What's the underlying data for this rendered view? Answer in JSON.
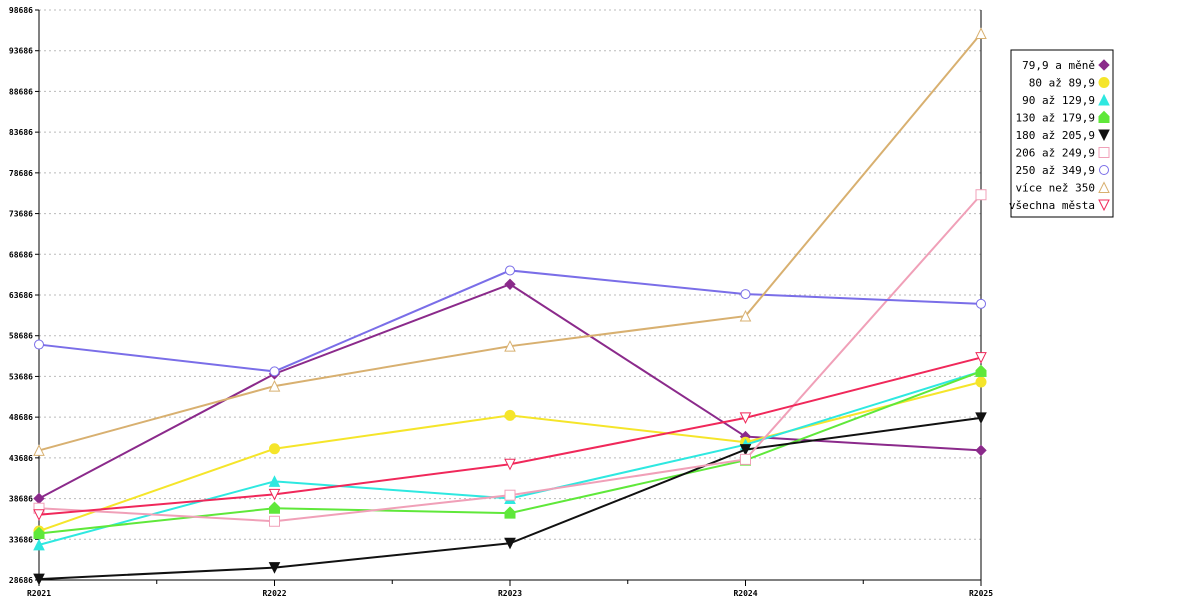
{
  "chart_data": {
    "type": "line",
    "categories": [
      "R2021",
      "R2022",
      "R2023",
      "R2024",
      "R2025"
    ],
    "ylim": [
      28686,
      98686
    ],
    "yticks": [
      28686,
      33686,
      38686,
      43686,
      48686,
      53686,
      58686,
      63686,
      68686,
      73686,
      78686,
      83686,
      88686,
      93686,
      98686
    ],
    "grid": true,
    "legend_position": "right",
    "series": [
      {
        "name": "79,9 a měně",
        "color": "#8b2a8b",
        "marker": "diamond",
        "values": [
          38700,
          54000,
          65000,
          46300,
          44600
        ]
      },
      {
        "name": "80 až 89,9",
        "color": "#f5e52a",
        "marker": "circle-filled",
        "values": [
          34700,
          44800,
          48900,
          45600,
          53000
        ]
      },
      {
        "name": "90 až 129,9",
        "color": "#2ee8e0",
        "marker": "triangle-up",
        "values": [
          33000,
          40800,
          38700,
          45300,
          54300
        ]
      },
      {
        "name": "130 až 179,9",
        "color": "#5fe83a",
        "marker": "house",
        "values": [
          34400,
          37500,
          36900,
          43400,
          54300
        ]
      },
      {
        "name": "180 až 205,9",
        "color": "#111111",
        "marker": "triangle-down",
        "values": [
          28800,
          30200,
          33200,
          44700,
          48600
        ]
      },
      {
        "name": "206 až 249,9",
        "color": "#f0a0b8",
        "marker": "square-open",
        "values": [
          37500,
          35900,
          39100,
          43500,
          76000
        ]
      },
      {
        "name": "250 až 349,9",
        "color": "#7a6ee8",
        "marker": "circle-open",
        "values": [
          57600,
          54300,
          66700,
          63800,
          62600
        ]
      },
      {
        "name": "více než 350",
        "color": "#d8b070",
        "marker": "triangle-up-open",
        "values": [
          44600,
          52500,
          57400,
          61100,
          95800
        ]
      },
      {
        "name": "všechna města",
        "color": "#f0285a",
        "marker": "triangle-down-open",
        "values": [
          36700,
          39200,
          42900,
          48600,
          56000
        ]
      }
    ]
  }
}
